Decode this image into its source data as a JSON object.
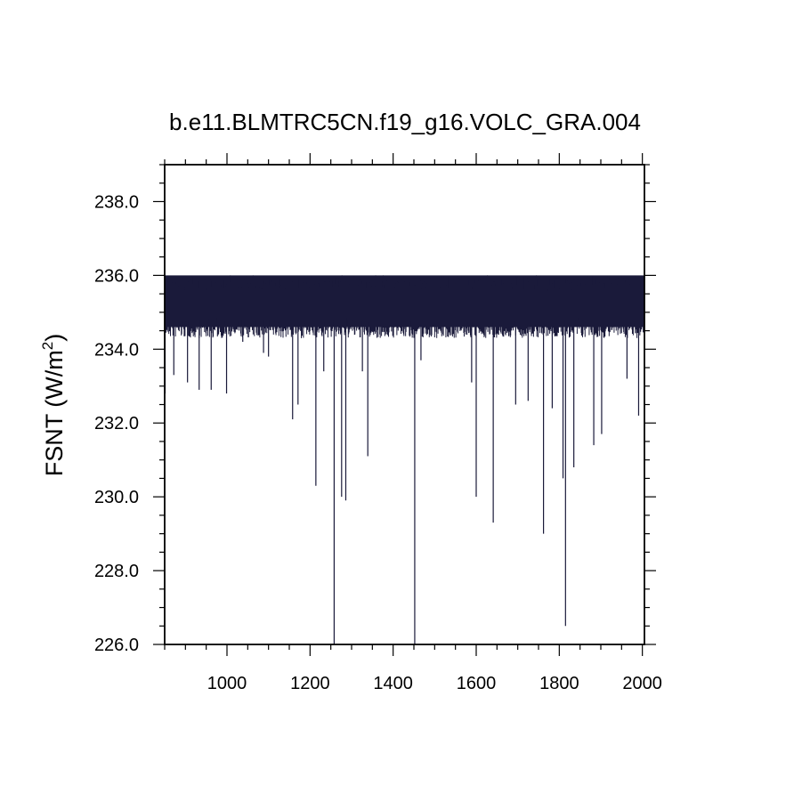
{
  "chart_data": {
    "type": "line",
    "title": "b.e11.BLMTRC5CN.f19_g16.VOLC_GRA.004",
    "ylabel": "FSNT",
    "ylabel_unit_prefix": "(W/m",
    "ylabel_unit_exp": "2",
    "ylabel_unit_suffix": ")",
    "xlabel": "",
    "xlim": [
      850,
      2005
    ],
    "ylim": [
      226.0,
      239.0
    ],
    "x_ticks": [
      1000,
      1200,
      1400,
      1600,
      1800,
      2000
    ],
    "x_tick_labels": [
      "1000",
      "1200",
      "1400",
      "1600",
      "1800",
      "2000"
    ],
    "y_ticks": [
      226.0,
      228.0,
      230.0,
      232.0,
      234.0,
      236.0,
      238.0
    ],
    "y_tick_labels": [
      "226.0",
      "228.0",
      "230.0",
      "232.0",
      "234.0",
      "236.0",
      "238.0"
    ],
    "series_color": "#1a1a3a",
    "baseline_band": [
      234.6,
      236.0
    ],
    "series": [
      {
        "description": "annual FSNT time series, dense oscillation with volcanic dips",
        "dips": [
          {
            "x": 851,
            "y": 232.8
          },
          {
            "x": 872,
            "y": 233.3
          },
          {
            "x": 905,
            "y": 233.1
          },
          {
            "x": 933,
            "y": 232.9
          },
          {
            "x": 962,
            "y": 232.9
          },
          {
            "x": 999,
            "y": 232.8
          },
          {
            "x": 1038,
            "y": 234.2
          },
          {
            "x": 1088,
            "y": 233.9
          },
          {
            "x": 1100,
            "y": 233.8
          },
          {
            "x": 1158,
            "y": 232.1
          },
          {
            "x": 1171,
            "y": 232.5
          },
          {
            "x": 1214,
            "y": 230.3
          },
          {
            "x": 1233,
            "y": 233.4
          },
          {
            "x": 1258,
            "y": 226.0
          },
          {
            "x": 1276,
            "y": 230.0
          },
          {
            "x": 1286,
            "y": 229.9
          },
          {
            "x": 1326,
            "y": 233.4
          },
          {
            "x": 1339,
            "y": 231.1
          },
          {
            "x": 1452,
            "y": 226.0
          },
          {
            "x": 1467,
            "y": 233.7
          },
          {
            "x": 1589,
            "y": 233.1
          },
          {
            "x": 1600,
            "y": 230.0
          },
          {
            "x": 1641,
            "y": 229.3
          },
          {
            "x": 1695,
            "y": 232.5
          },
          {
            "x": 1725,
            "y": 232.6
          },
          {
            "x": 1762,
            "y": 229.0
          },
          {
            "x": 1783,
            "y": 232.4
          },
          {
            "x": 1809,
            "y": 230.5
          },
          {
            "x": 1815,
            "y": 226.5
          },
          {
            "x": 1835,
            "y": 230.8
          },
          {
            "x": 1883,
            "y": 231.4
          },
          {
            "x": 1902,
            "y": 231.7
          },
          {
            "x": 1963,
            "y": 233.2
          },
          {
            "x": 1991,
            "y": 232.2
          }
        ]
      }
    ]
  }
}
